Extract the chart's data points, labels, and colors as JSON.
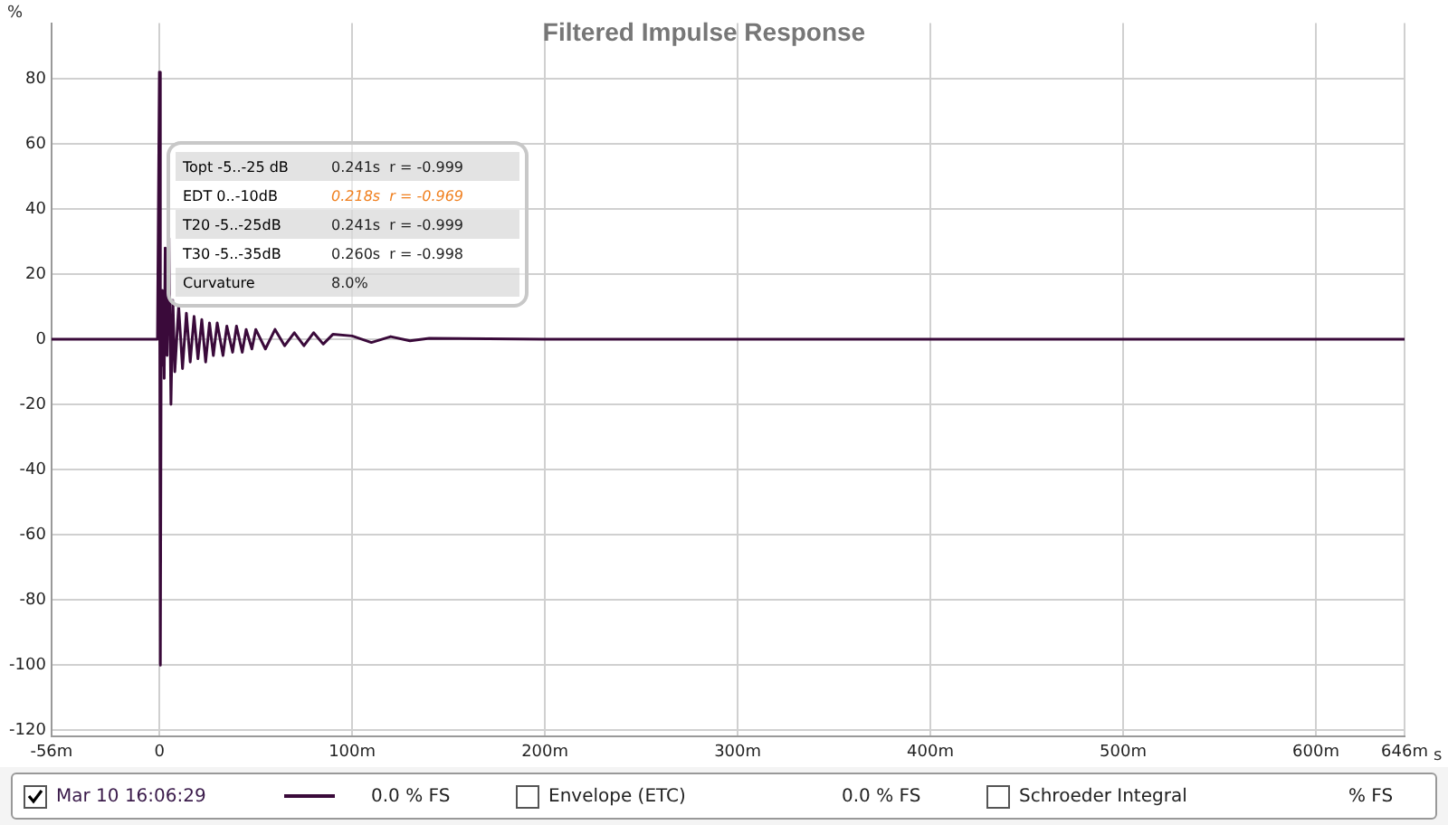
{
  "chart_data": {
    "type": "line",
    "title": "Filtered Impulse Response",
    "xlabel": "s",
    "ylabel": "%",
    "x": [
      -56,
      -1,
      0,
      0.5,
      1,
      1.5,
      2,
      2.5,
      3,
      4,
      5,
      6,
      7,
      8,
      10,
      12,
      14,
      16,
      18,
      20,
      22,
      24,
      26,
      28,
      30,
      33,
      35,
      38,
      40,
      43,
      45,
      48,
      50,
      55,
      60,
      65,
      70,
      75,
      80,
      85,
      90,
      100,
      110,
      120,
      130,
      140,
      200,
      646
    ],
    "series": [
      {
        "name": "Mar 10 16:06:29",
        "color": "#3a0a3a",
        "values": [
          0,
          0,
          82,
          -100,
          15,
          -8,
          10,
          -12,
          28,
          -5,
          31,
          -20,
          12,
          -10,
          10,
          -9,
          8,
          -7,
          7,
          -6,
          6,
          -7,
          5,
          -5,
          5,
          -5,
          4,
          -4,
          4,
          -4,
          3,
          -3,
          3,
          -3,
          3,
          -2,
          2,
          -2,
          2,
          -1.5,
          1.5,
          1,
          -1,
          0.8,
          -0.5,
          0.3,
          0,
          0
        ]
      }
    ],
    "xlim": [
      -56,
      646
    ],
    "xticks": [
      {
        "value": -56,
        "label": "-56m"
      },
      0,
      {
        "value": 100,
        "label": "100m"
      },
      {
        "value": 200,
        "label": "200m"
      },
      {
        "value": 300,
        "label": "300m"
      },
      {
        "value": 400,
        "label": "400m"
      },
      {
        "value": 500,
        "label": "500m"
      },
      {
        "value": 600,
        "label": "600m"
      },
      {
        "value": 646,
        "label": "646m"
      }
    ],
    "ylim": [
      -122,
      97
    ],
    "yticks": [
      -120,
      -100,
      -80,
      -60,
      -40,
      -20,
      0,
      20,
      40,
      60,
      80
    ],
    "grid": true,
    "legend": "bottom",
    "marker": "none",
    "line_style": "solid",
    "annotations": [
      "Topt -5..-25 dB",
      "0.241s  r = -0.999",
      "EDT  0..-10dB",
      "0.218s  r = -0.969",
      "T20 -5..-25dB",
      "0.241s  r = -0.999",
      "T30 -5..-35dB",
      "0.260s  r = -0.998",
      "Curvature",
      "8.0%",
      "0.0 % FS",
      "Envelope (ETC)",
      "0.0 % FS",
      "Schroeder Integral",
      "% FS"
    ]
  }
}
